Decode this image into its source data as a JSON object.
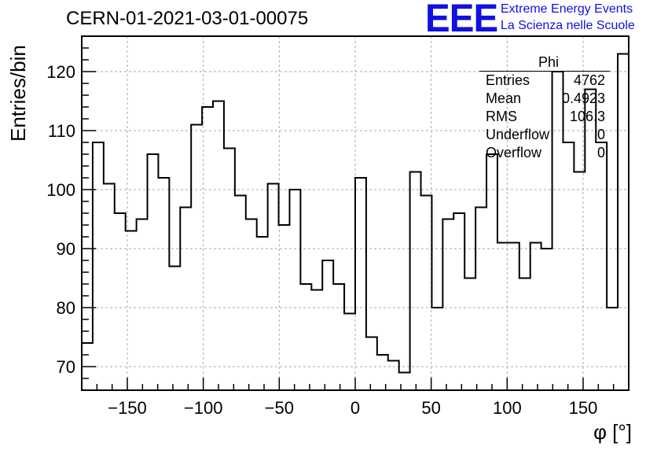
{
  "header": {
    "run_title": "CERN-01-2021-03-01-00075",
    "logo_text": "EEE",
    "logo_line1": "Extreme Energy Events",
    "logo_line2": "La Scienza nelle Scuole",
    "logo_color": "#1010e0"
  },
  "stats": {
    "name": "Phi",
    "rows": [
      {
        "label": "Entries",
        "value": "4762"
      },
      {
        "label": "Mean",
        "value": "0.4923"
      },
      {
        "label": "RMS",
        "value": "106.3"
      },
      {
        "label": "Underflow",
        "value": "0"
      },
      {
        "label": "Overflow",
        "value": "0"
      }
    ]
  },
  "chart_data": {
    "type": "histogram",
    "xlabel": "φ [°]",
    "ylabel": "Entries/bin",
    "xlim": [
      -180,
      180
    ],
    "ylim": [
      66,
      126
    ],
    "bin_width": 7.2,
    "x_ticks": [
      -150,
      -100,
      -50,
      0,
      50,
      100,
      150
    ],
    "y_ticks": [
      70,
      80,
      90,
      100,
      110,
      120
    ],
    "grid": true,
    "line_color": "#000000",
    "values": [
      74,
      108,
      101,
      96,
      93,
      95,
      106,
      102,
      87,
      97,
      111,
      114,
      115,
      107,
      99,
      95,
      92,
      101,
      94,
      100,
      84,
      83,
      88,
      84,
      79,
      102,
      75,
      72,
      71,
      69,
      103,
      99,
      80,
      95,
      96,
      85,
      97,
      106,
      91,
      91,
      85,
      91,
      90,
      120,
      108,
      103,
      117,
      108,
      80,
      123
    ]
  }
}
